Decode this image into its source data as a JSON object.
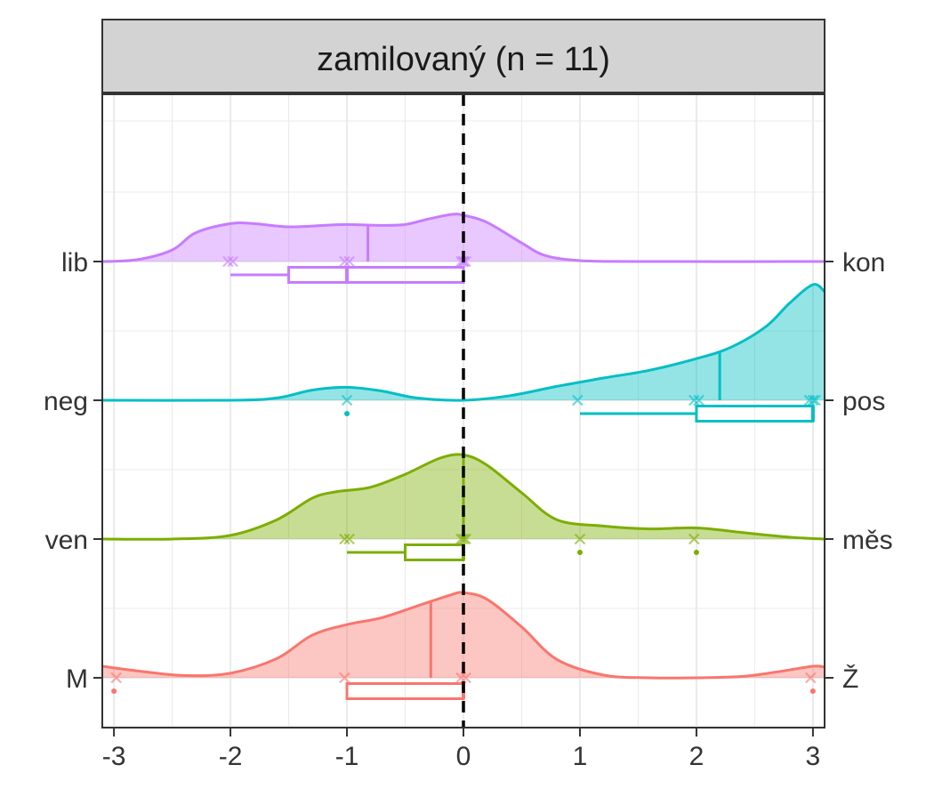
{
  "chart_data": {
    "type": "ridgeline",
    "title": "zamilovaný (n = 11)",
    "xlim": [
      -3.1,
      3.1
    ],
    "x_ticks": [
      -3,
      -2,
      -1,
      0,
      1,
      2,
      3
    ],
    "x_tick_labels": [
      "-3",
      "-2",
      "-1",
      "0",
      "1",
      "2",
      "3"
    ],
    "reference_line_x": 0,
    "grid": true,
    "rows": [
      {
        "left_label": "lib",
        "right_label": "kon",
        "color": "#c77cff",
        "density": [
          [
            -3.1,
            0.0
          ],
          [
            -2.8,
            0.04
          ],
          [
            -2.5,
            0.25
          ],
          [
            -2.3,
            0.62
          ],
          [
            -2.0,
            0.82
          ],
          [
            -1.8,
            0.82
          ],
          [
            -1.5,
            0.75
          ],
          [
            -1.2,
            0.78
          ],
          [
            -1.0,
            0.8
          ],
          [
            -0.7,
            0.78
          ],
          [
            -0.5,
            0.8
          ],
          [
            -0.3,
            0.92
          ],
          [
            -0.1,
            1.02
          ],
          [
            0.0,
            1.0
          ],
          [
            0.2,
            0.85
          ],
          [
            0.5,
            0.4
          ],
          [
            0.7,
            0.13
          ],
          [
            1.0,
            0.02
          ],
          [
            1.5,
            0.0
          ],
          [
            3.1,
            0.0
          ]
        ],
        "mean": -0.82,
        "points": [
          -2.02,
          -1.98,
          -1.02,
          -0.98,
          -0.02,
          0.0,
          0.0,
          0.02
        ],
        "box": {
          "whisker_low": -2,
          "q1": -1.5,
          "median": -1,
          "q3": 0,
          "whisker_high": 0
        },
        "outliers": []
      },
      {
        "left_label": "neg",
        "right_label": "pos",
        "color": "#00bfc4",
        "density": [
          [
            -3.1,
            0.0
          ],
          [
            -2.0,
            0.0
          ],
          [
            -1.6,
            0.05
          ],
          [
            -1.3,
            0.22
          ],
          [
            -1.0,
            0.28
          ],
          [
            -0.7,
            0.2
          ],
          [
            -0.4,
            0.05
          ],
          [
            0.0,
            0.0
          ],
          [
            0.4,
            0.1
          ],
          [
            0.8,
            0.3
          ],
          [
            1.2,
            0.48
          ],
          [
            1.6,
            0.65
          ],
          [
            2.0,
            0.9
          ],
          [
            2.3,
            1.15
          ],
          [
            2.6,
            1.6
          ],
          [
            2.8,
            2.1
          ],
          [
            3.0,
            2.5
          ],
          [
            3.1,
            2.35
          ]
        ],
        "mean": 2.2,
        "points": [
          -1.0,
          0.98,
          1.98,
          2.02,
          2.97,
          3.0,
          3.02
        ],
        "box": {
          "whisker_low": 1,
          "q1": 2,
          "median": 3,
          "q3": 3,
          "whisker_high": 3
        },
        "outliers": [
          -1
        ]
      },
      {
        "left_label": "ven",
        "right_label": "měs",
        "color": "#7cae00",
        "density": [
          [
            -3.1,
            0.0
          ],
          [
            -2.5,
            0.0
          ],
          [
            -2.0,
            0.08
          ],
          [
            -1.6,
            0.42
          ],
          [
            -1.3,
            0.88
          ],
          [
            -1.1,
            1.02
          ],
          [
            -0.8,
            1.12
          ],
          [
            -0.5,
            1.4
          ],
          [
            -0.2,
            1.75
          ],
          [
            0.0,
            1.82
          ],
          [
            0.2,
            1.6
          ],
          [
            0.5,
            1.0
          ],
          [
            0.8,
            0.42
          ],
          [
            1.2,
            0.28
          ],
          [
            1.6,
            0.22
          ],
          [
            2.0,
            0.24
          ],
          [
            2.4,
            0.14
          ],
          [
            2.8,
            0.04
          ],
          [
            3.1,
            0.0
          ]
        ],
        "mean": 0.0,
        "points": [
          -1.02,
          -0.98,
          -0.02,
          0.0,
          0.02,
          1.0,
          1.98
        ],
        "box": {
          "whisker_low": -1,
          "q1": -0.5,
          "median": 0,
          "q3": 0,
          "whisker_high": 0
        },
        "outliers": [
          1,
          2
        ]
      },
      {
        "left_label": "M",
        "right_label": "Ž",
        "color": "#f8766d",
        "density": [
          [
            -3.1,
            0.25
          ],
          [
            -2.8,
            0.15
          ],
          [
            -2.4,
            0.05
          ],
          [
            -2.0,
            0.1
          ],
          [
            -1.6,
            0.42
          ],
          [
            -1.3,
            0.92
          ],
          [
            -1.0,
            1.15
          ],
          [
            -0.7,
            1.3
          ],
          [
            -0.4,
            1.55
          ],
          [
            -0.1,
            1.8
          ],
          [
            0.0,
            1.84
          ],
          [
            0.2,
            1.7
          ],
          [
            0.5,
            1.1
          ],
          [
            0.8,
            0.4
          ],
          [
            1.2,
            0.06
          ],
          [
            1.6,
            0.0
          ],
          [
            2.0,
            0.0
          ],
          [
            2.4,
            0.03
          ],
          [
            2.7,
            0.13
          ],
          [
            3.0,
            0.25
          ],
          [
            3.1,
            0.23
          ]
        ],
        "mean": -0.28,
        "points": [
          -2.98,
          -1.02,
          -0.02,
          0.02,
          2.98
        ],
        "box": {
          "whisker_low": -1,
          "q1": -1,
          "median": 0,
          "q3": 0,
          "whisker_high": 0
        },
        "outliers": [
          -3,
          3
        ]
      }
    ]
  }
}
